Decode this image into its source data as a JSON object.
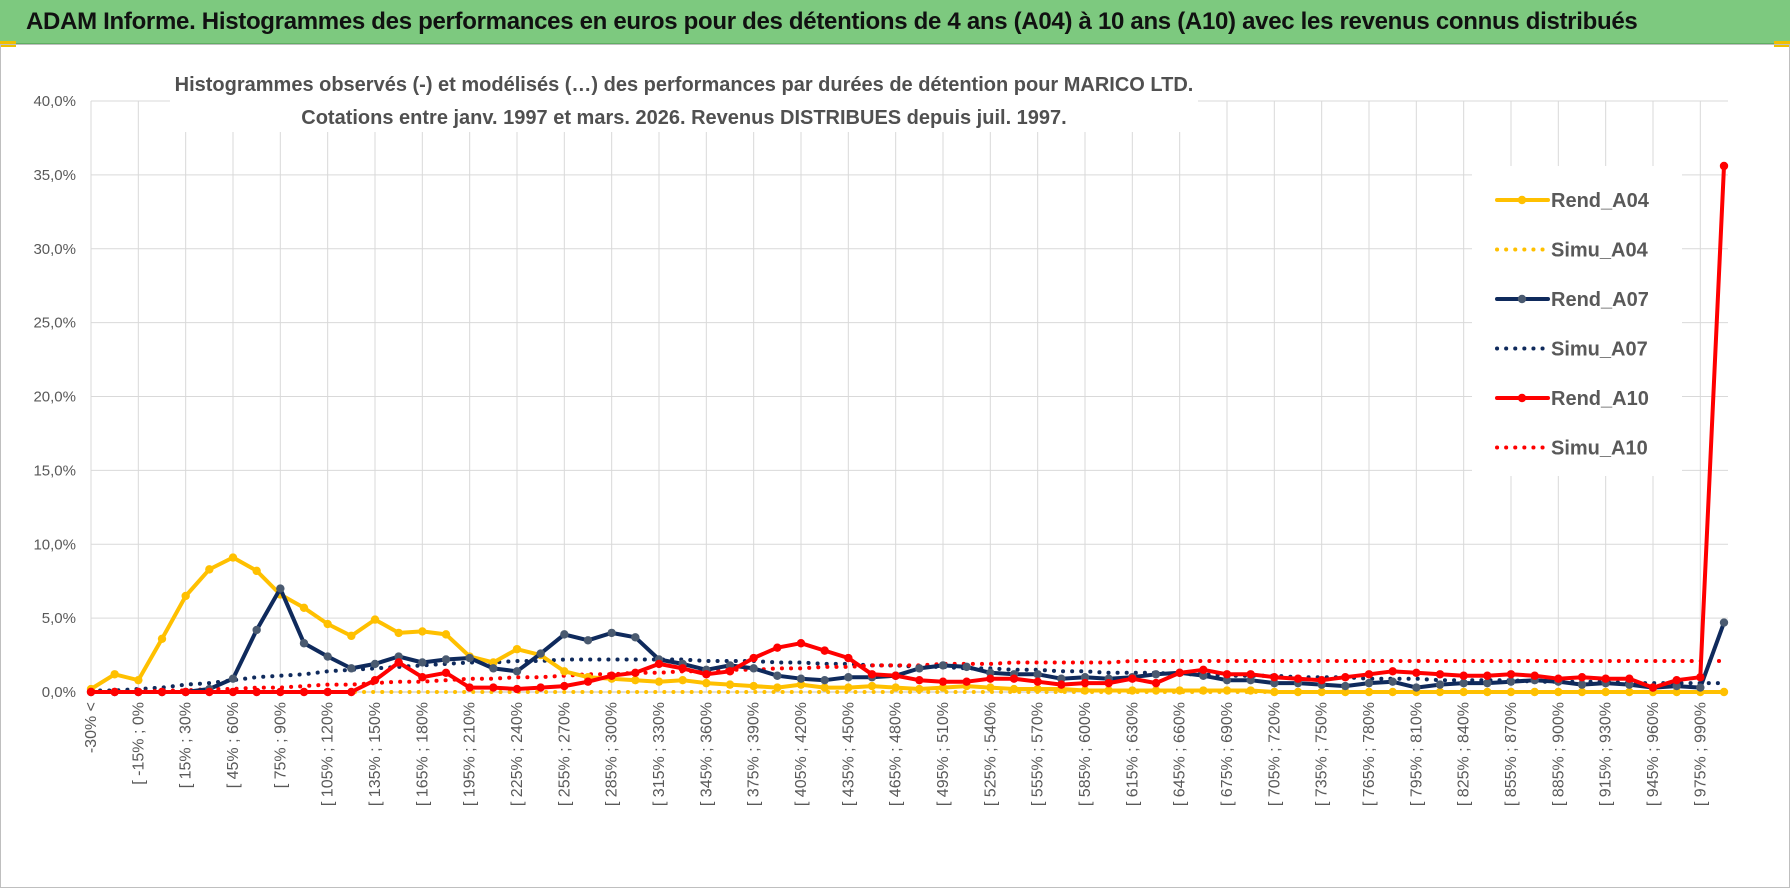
{
  "banner": {
    "title": "ADAM Informe. Histogrammes des performances en euros pour des détentions de 4 ans (A04) à 10 ans (A10) avec les revenus connus distribués"
  },
  "colors": {
    "banner_bg": "#7dc97f",
    "A04": "#FFC000",
    "A07": "#0F2A5C",
    "A07_marker": "#4A5A70",
    "A10": "#FF0000",
    "grid": "#D9D9D9"
  },
  "chart_data": {
    "type": "line",
    "title_lines": [
      "Histogrammes observés (-) et modélisés (…) des performances par durées de détention pour MARICO LTD.",
      "Cotations entre janv. 1997 et mars. 2026.  Revenus DISTRIBUES depuis juil. 1997."
    ],
    "y_tick_labels": [
      "0,0%",
      "5,0%",
      "10,0%",
      "15,0%",
      "20,0%",
      "25,0%",
      "30,0%",
      "35,0%",
      "40,0%"
    ],
    "ylim": [
      0,
      40
    ],
    "y_unit": "%",
    "grid": true,
    "legend_position": "right",
    "x_tick_labels": [
      "-30% <",
      "[ -15% ; 0%",
      "[ 15% ; 30%",
      "[ 45% ; 60%",
      "[ 75% ; 90%",
      "[ 105% ; 120%",
      "[ 135% ; 150%",
      "[ 165% ; 180%",
      "[ 195% ; 210%",
      "[ 225% ; 240%",
      "[ 255% ; 270%",
      "[ 285% ; 300%",
      "[ 315% ; 330%",
      "[ 345% ; 360%",
      "[ 375% ; 390%",
      "[ 405% ; 420%",
      "[ 435% ; 450%",
      "[ 465% ; 480%",
      "[ 495% ; 510%",
      "[ 525% ; 540%",
      "[ 555% ; 570%",
      "[ 585% ; 600%",
      "[ 615% ; 630%",
      "[ 645% ; 660%",
      "[ 675% ; 690%",
      "[ 705% ; 720%",
      "[ 735% ; 750%",
      "[ 765% ; 780%",
      "[ 795% ; 810%",
      "[ 825% ; 840%",
      "[ 855% ; 870%",
      "[ 885% ; 900%",
      "[ 915% ; 930%",
      "[ 945% ; 960%",
      "[ 975% ; 990%"
    ],
    "n_categories": 70,
    "series": [
      {
        "name": "Rend_A04",
        "style": "solid",
        "color": "#FFC000",
        "values": [
          0.2,
          1.2,
          0.8,
          3.6,
          6.5,
          8.3,
          9.1,
          8.2,
          6.6,
          5.7,
          4.6,
          3.8,
          4.9,
          4.0,
          4.1,
          3.9,
          2.4,
          2.0,
          2.9,
          2.5,
          1.4,
          1.0,
          0.9,
          0.8,
          0.7,
          0.8,
          0.6,
          0.5,
          0.4,
          0.3,
          0.5,
          0.3,
          0.3,
          0.4,
          0.3,
          0.2,
          0.3,
          0.4,
          0.3,
          0.2,
          0.2,
          0.2,
          0.1,
          0.1,
          0.1,
          0.1,
          0.1,
          0.1,
          0.1,
          0.1,
          0.0,
          0.0,
          0.0,
          0.0,
          0.0,
          0.0,
          0.0,
          0.0,
          0.0,
          0.0,
          0.0,
          0.0,
          0.0,
          0.0,
          0.0,
          0.0,
          0.0,
          0.0,
          0.0,
          0.0
        ]
      },
      {
        "name": "Simu_A04",
        "style": "dotted",
        "color": "#FFC000",
        "values": [
          0.0,
          0.0,
          0.0,
          0.0,
          0.0,
          0.0,
          0.0,
          0.0,
          0.0,
          0.0,
          0.0,
          0.0,
          0.0,
          0.0,
          0.0,
          0.0,
          0.0,
          0.0,
          0.0,
          0.0,
          0.0,
          0.0,
          0.0,
          0.0,
          0.0,
          0.0,
          0.0,
          0.0,
          0.0,
          0.0,
          0.0,
          0.0,
          0.0,
          0.0,
          0.0,
          0.0,
          0.0,
          0.0,
          0.0,
          0.0,
          0.0,
          0.0,
          0.0,
          0.0,
          0.0,
          0.0,
          0.0,
          0.0,
          0.0,
          0.0,
          0.0,
          0.0,
          0.0,
          0.0,
          0.0,
          0.0,
          0.0,
          0.0,
          0.0,
          0.0,
          0.0,
          0.0,
          0.0,
          0.0,
          0.0,
          0.0,
          0.0,
          0.0,
          0.0,
          0.0
        ]
      },
      {
        "name": "Rend_A07",
        "style": "solid",
        "color": "#0F2A5C",
        "values": [
          0.0,
          0.0,
          0.0,
          0.0,
          0.0,
          0.2,
          0.9,
          4.2,
          7.0,
          3.3,
          2.4,
          1.6,
          1.9,
          2.4,
          2.0,
          2.2,
          2.3,
          1.6,
          1.4,
          2.6,
          3.9,
          3.5,
          4.0,
          3.7,
          2.2,
          1.9,
          1.5,
          1.8,
          1.6,
          1.1,
          0.9,
          0.8,
          1.0,
          1.0,
          1.1,
          1.6,
          1.8,
          1.7,
          1.3,
          1.2,
          1.2,
          0.9,
          1.0,
          0.9,
          1.0,
          1.2,
          1.3,
          1.1,
          0.8,
          0.8,
          0.6,
          0.6,
          0.5,
          0.4,
          0.6,
          0.7,
          0.3,
          0.5,
          0.6,
          0.6,
          0.7,
          0.8,
          0.7,
          0.5,
          0.6,
          0.5,
          0.3,
          0.4,
          0.3,
          4.7
        ]
      },
      {
        "name": "Simu_A07",
        "style": "dotted",
        "color": "#0F2A5C",
        "values": [
          0.1,
          0.1,
          0.2,
          0.3,
          0.5,
          0.6,
          0.8,
          1.0,
          1.1,
          1.2,
          1.4,
          1.5,
          1.6,
          1.7,
          1.8,
          1.9,
          2.0,
          2.0,
          2.1,
          2.1,
          2.2,
          2.2,
          2.2,
          2.2,
          2.2,
          2.2,
          2.1,
          2.1,
          2.1,
          2.0,
          2.0,
          1.9,
          1.9,
          1.8,
          1.8,
          1.7,
          1.7,
          1.6,
          1.6,
          1.5,
          1.5,
          1.4,
          1.4,
          1.3,
          1.3,
          1.3,
          1.2,
          1.2,
          1.1,
          1.1,
          1.1,
          1.0,
          1.0,
          1.0,
          0.9,
          0.9,
          0.9,
          0.8,
          0.8,
          0.8,
          0.8,
          0.7,
          0.7,
          0.7,
          0.7,
          0.6,
          0.6,
          0.6,
          0.6,
          0.6
        ]
      },
      {
        "name": "Rend_A10",
        "style": "solid",
        "color": "#FF0000",
        "values": [
          0.0,
          0.0,
          0.0,
          0.0,
          0.0,
          0.0,
          0.0,
          0.0,
          0.0,
          0.0,
          0.0,
          0.0,
          0.8,
          2.0,
          1.0,
          1.3,
          0.3,
          0.3,
          0.2,
          0.3,
          0.4,
          0.7,
          1.1,
          1.3,
          1.9,
          1.6,
          1.2,
          1.4,
          2.3,
          3.0,
          3.3,
          2.8,
          2.3,
          1.2,
          1.1,
          0.8,
          0.7,
          0.7,
          0.9,
          0.9,
          0.7,
          0.5,
          0.6,
          0.6,
          0.9,
          0.6,
          1.3,
          1.5,
          1.2,
          1.2,
          1.0,
          0.9,
          0.8,
          1.0,
          1.2,
          1.4,
          1.3,
          1.2,
          1.1,
          1.1,
          1.2,
          1.1,
          0.9,
          1.0,
          0.9,
          0.9,
          0.3,
          0.8,
          1.0,
          35.6
        ]
      },
      {
        "name": "Simu_A10",
        "style": "dotted",
        "color": "#FF0000",
        "values": [
          0.0,
          0.0,
          0.0,
          0.1,
          0.1,
          0.2,
          0.2,
          0.3,
          0.3,
          0.4,
          0.5,
          0.5,
          0.6,
          0.7,
          0.7,
          0.8,
          0.9,
          0.9,
          1.0,
          1.0,
          1.1,
          1.2,
          1.2,
          1.3,
          1.3,
          1.4,
          1.4,
          1.5,
          1.5,
          1.6,
          1.6,
          1.7,
          1.7,
          1.8,
          1.8,
          1.8,
          1.9,
          1.9,
          1.9,
          2.0,
          2.0,
          2.0,
          2.0,
          2.0,
          2.1,
          2.1,
          2.1,
          2.1,
          2.1,
          2.1,
          2.1,
          2.1,
          2.1,
          2.1,
          2.1,
          2.1,
          2.1,
          2.1,
          2.1,
          2.1,
          2.1,
          2.1,
          2.1,
          2.1,
          2.1,
          2.1,
          2.1,
          2.1,
          2.1,
          2.1
        ]
      }
    ]
  }
}
